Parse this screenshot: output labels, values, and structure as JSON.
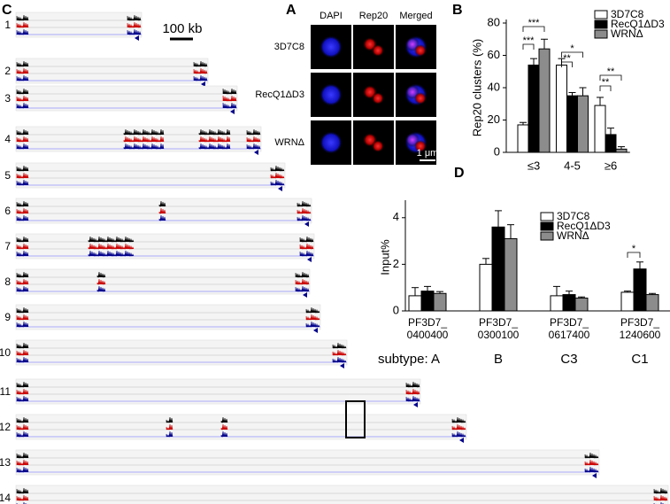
{
  "panel_labels": [
    "C",
    "A",
    "B",
    "D"
  ],
  "genome_browser": {
    "scale_bar": "100 kb",
    "chromosomes": [
      "1",
      "2",
      "3",
      "4",
      "5",
      "6",
      "7",
      "8",
      "9",
      "10",
      "11",
      "12",
      "13",
      "14"
    ]
  },
  "microscopy": {
    "columns": [
      "DAPI",
      "Rep20",
      "Merged"
    ],
    "rows": [
      "3D7C8",
      "RecQ1ΔD3",
      "WRNΔ"
    ],
    "scale_bar": "1 μm"
  },
  "chart_data": [
    {
      "type": "bar",
      "y_label": "Rep20 clusters (%)",
      "categories": [
        "≤3",
        "4-5",
        "≥6"
      ],
      "series": [
        {
          "name": "3D7C8",
          "color": "#ffffff",
          "values": [
            17,
            54,
            29
          ],
          "errors": [
            1.5,
            4,
            5
          ]
        },
        {
          "name": "RecQ1ΔD3",
          "color": "#000000",
          "values": [
            54,
            35,
            11
          ],
          "errors": [
            4,
            2,
            4
          ]
        },
        {
          "name": "WRNΔ",
          "color": "#8c8c8c",
          "values": [
            64,
            35,
            2
          ],
          "errors": [
            6,
            5,
            1.5
          ]
        }
      ],
      "ylim": [
        0,
        80
      ],
      "yticks": [
        0,
        20,
        40,
        60,
        80
      ],
      "annotations": [
        "***",
        "***",
        "**",
        "*",
        "**",
        "**"
      ],
      "legend": "top-right"
    },
    {
      "type": "bar",
      "y_label": "Input%",
      "categories": [
        [
          "PF3D7_",
          "0400400"
        ],
        [
          "PF3D7_",
          "0300100"
        ],
        [
          "PF3D7_",
          "0617400"
        ],
        [
          "PF3D7_",
          "1240600"
        ]
      ],
      "subtypes": [
        "subtype: A",
        "B",
        "C3",
        "C1"
      ],
      "series": [
        {
          "name": "3D7C8",
          "color": "#ffffff",
          "values": [
            0.65,
            2.0,
            0.65,
            0.8
          ],
          "errors": [
            0.35,
            0.25,
            0.4,
            0.05
          ]
        },
        {
          "name": "RecQ1ΔD3",
          "color": "#000000",
          "values": [
            0.85,
            3.6,
            0.7,
            1.8
          ],
          "errors": [
            0.2,
            0.7,
            0.15,
            0.3
          ]
        },
        {
          "name": "WRNΔ",
          "color": "#8c8c8c",
          "values": [
            0.75,
            3.1,
            0.55,
            0.7
          ],
          "errors": [
            0.08,
            0.6,
            0.05,
            0.05
          ]
        }
      ],
      "ylim": [
        0,
        4.6
      ],
      "yticks": [
        0,
        2,
        4
      ],
      "annotations": [
        "*"
      ],
      "legend": "top-right"
    }
  ]
}
